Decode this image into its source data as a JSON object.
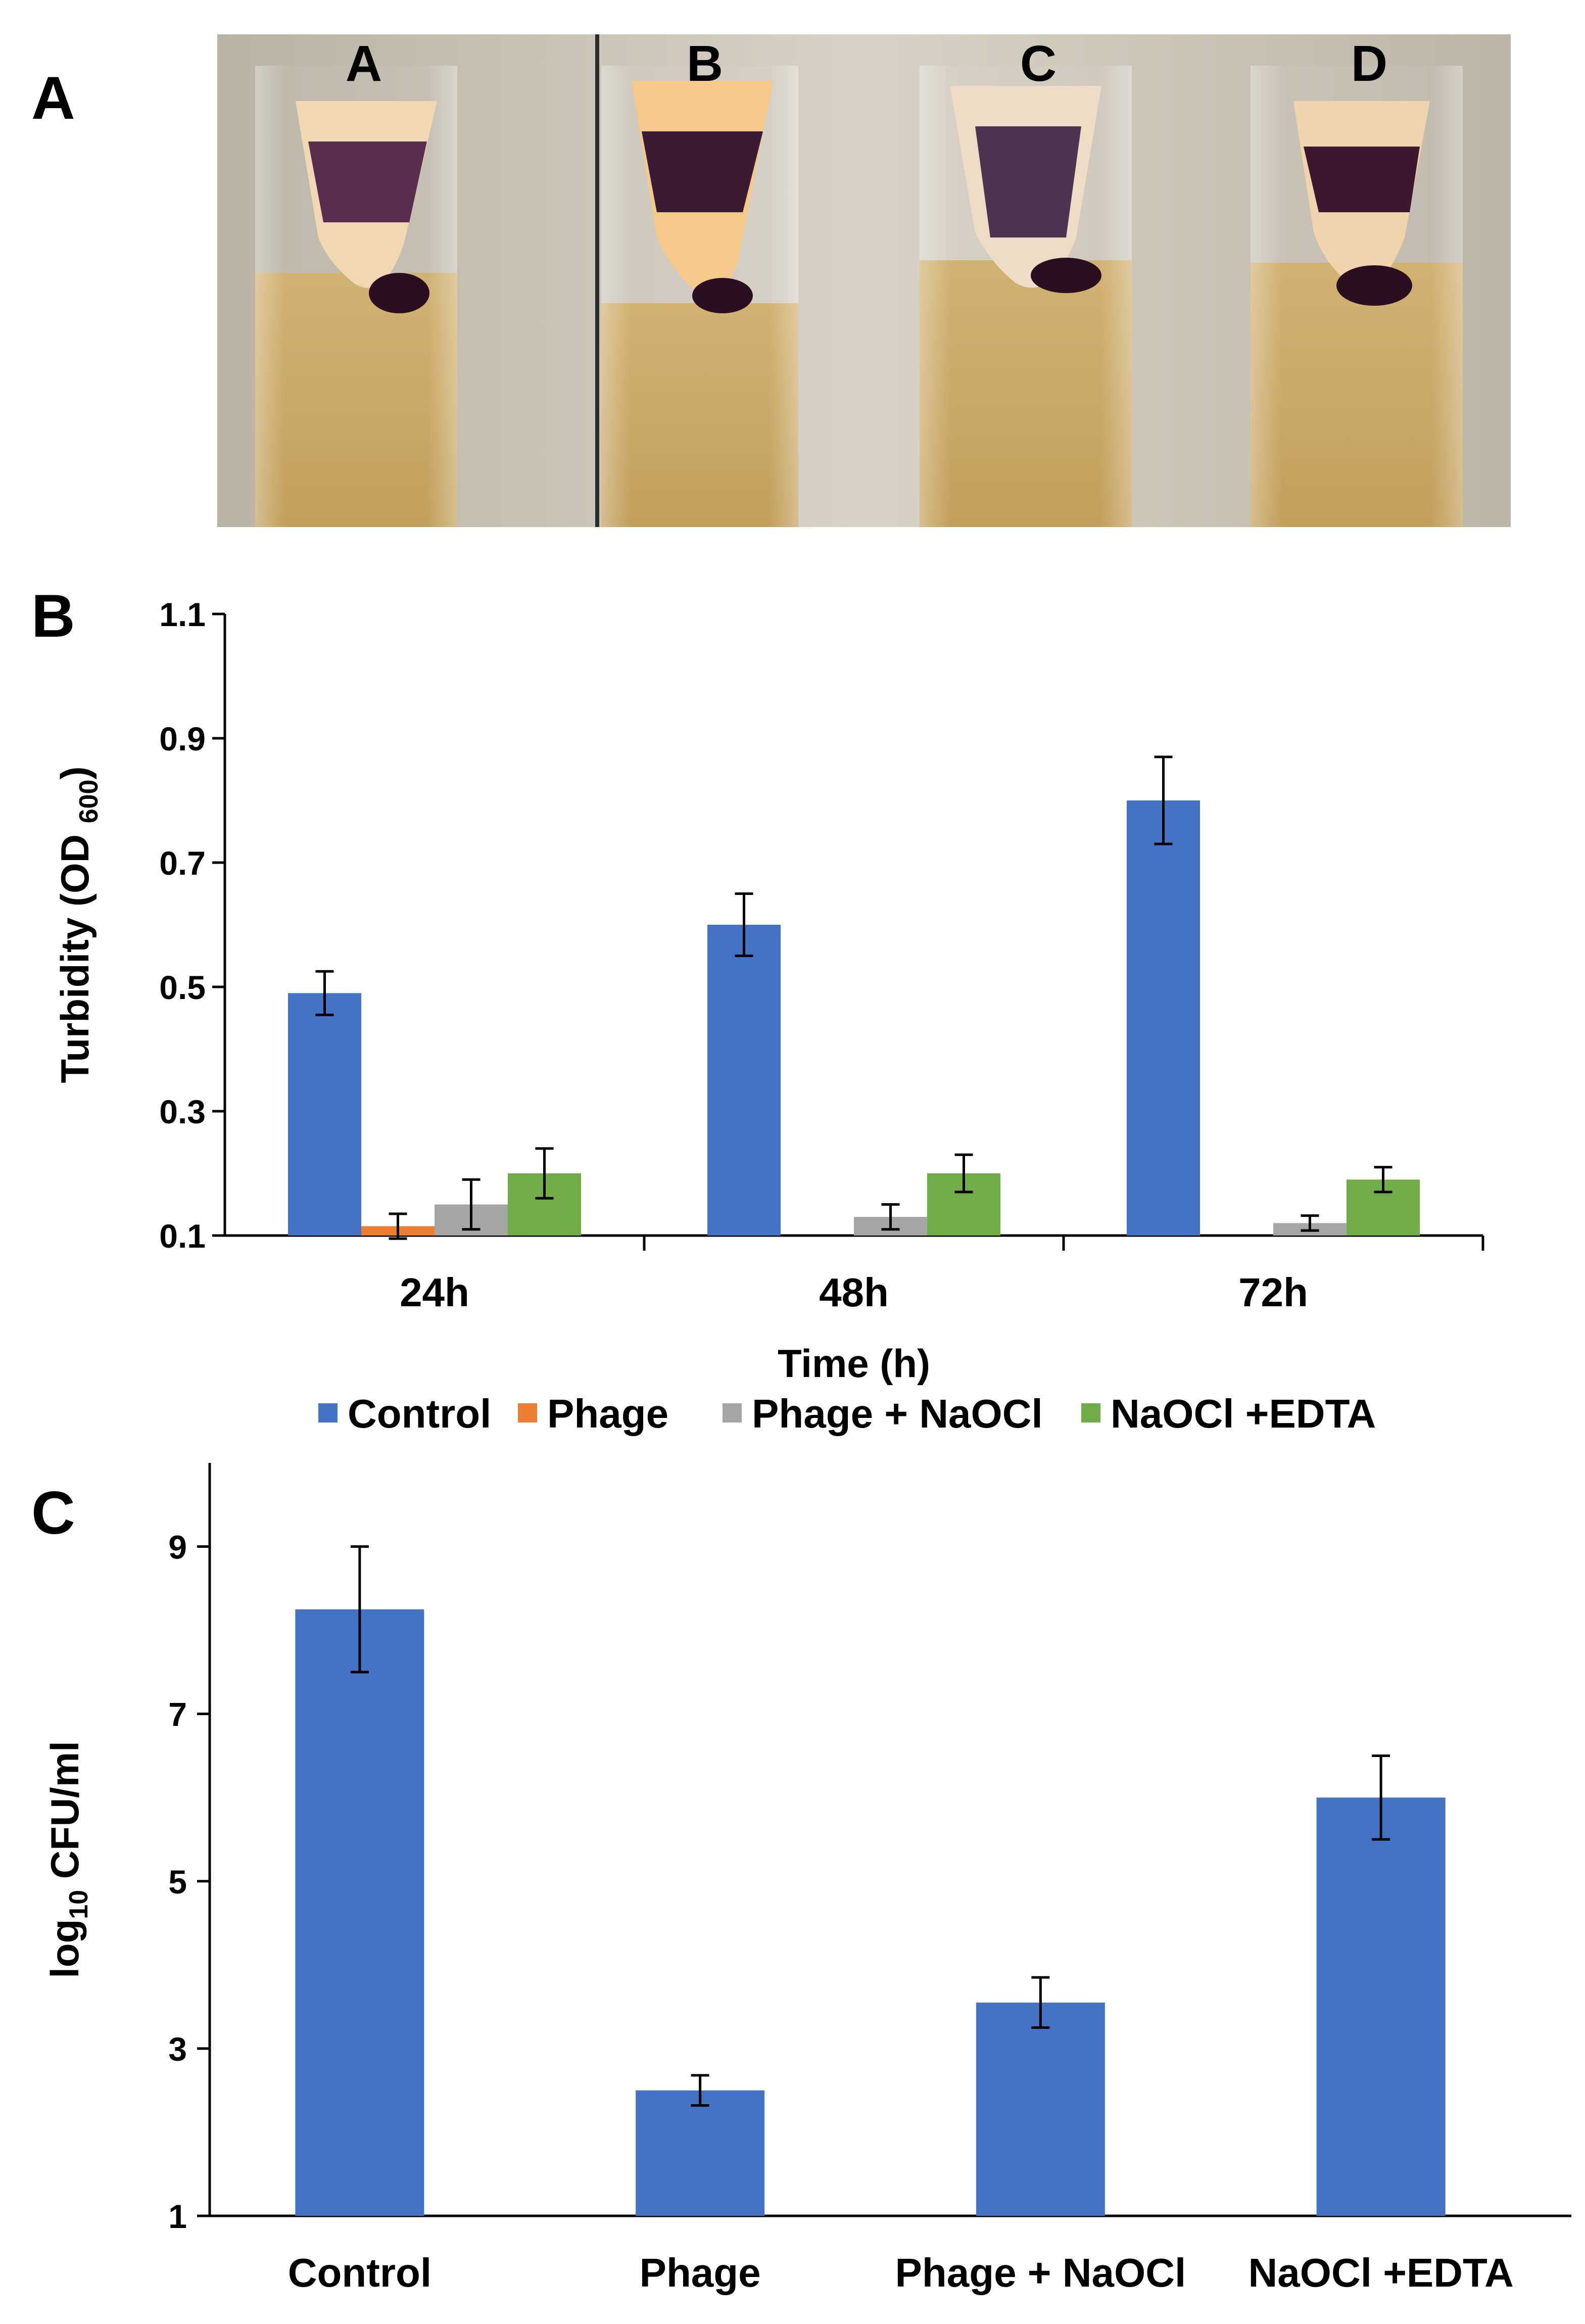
{
  "panels": {
    "a": {
      "label": "A",
      "tube_labels": [
        "A",
        "B",
        "C",
        "D"
      ]
    },
    "b": {
      "label": "B"
    },
    "c": {
      "label": "C"
    }
  },
  "colors": {
    "Control": "#4472C4",
    "Phage": "#ED7D31",
    "Phage + NaOCl": "#A5A5A5",
    "NaOCl +EDTA": "#70AD47"
  },
  "chart_data": [
    {
      "type": "bar",
      "title": "",
      "xlabel": "Time (h)",
      "ylabel": "Turbidity (OD",
      "ylabel_sub": "600",
      "ylabel_close": ")",
      "categories": [
        "24h",
        "48h",
        "72h"
      ],
      "ylim": [
        0.1,
        1.1
      ],
      "yticks": [
        "0.1",
        "0.3",
        "0.5",
        "0.7",
        "0.9",
        "1.1"
      ],
      "legend": "top-center",
      "series": [
        {
          "name": "Control",
          "values": [
            0.49,
            0.6,
            0.8
          ],
          "errors": [
            0.035,
            0.05,
            0.07
          ]
        },
        {
          "name": "Phage",
          "values": [
            0.115,
            0.1,
            0.1
          ],
          "errors": [
            0.02,
            0,
            0
          ]
        },
        {
          "name": "Phage + NaOCl",
          "values": [
            0.15,
            0.13,
            0.12
          ],
          "errors": [
            0.04,
            0.02,
            0.012
          ]
        },
        {
          "name": "NaOCl +EDTA",
          "values": [
            0.2,
            0.2,
            0.19
          ],
          "errors": [
            0.04,
            0.03,
            0.02
          ]
        }
      ]
    },
    {
      "type": "bar",
      "title": "",
      "xlabel": "",
      "ylabel_main": "log",
      "ylabel_sub": "10",
      "ylabel_rest": " CFU/ml",
      "categories": [
        "Control",
        "Phage",
        "Phage + NaOCl",
        "NaOCl +EDTA"
      ],
      "ylim": [
        1,
        10
      ],
      "yticks": [
        "1",
        "3",
        "5",
        "7",
        "9"
      ],
      "values": [
        8.25,
        2.5,
        3.55,
        6.0
      ],
      "errors": [
        0.75,
        0.18,
        0.3,
        0.5
      ],
      "color": "#4472C4"
    }
  ]
}
